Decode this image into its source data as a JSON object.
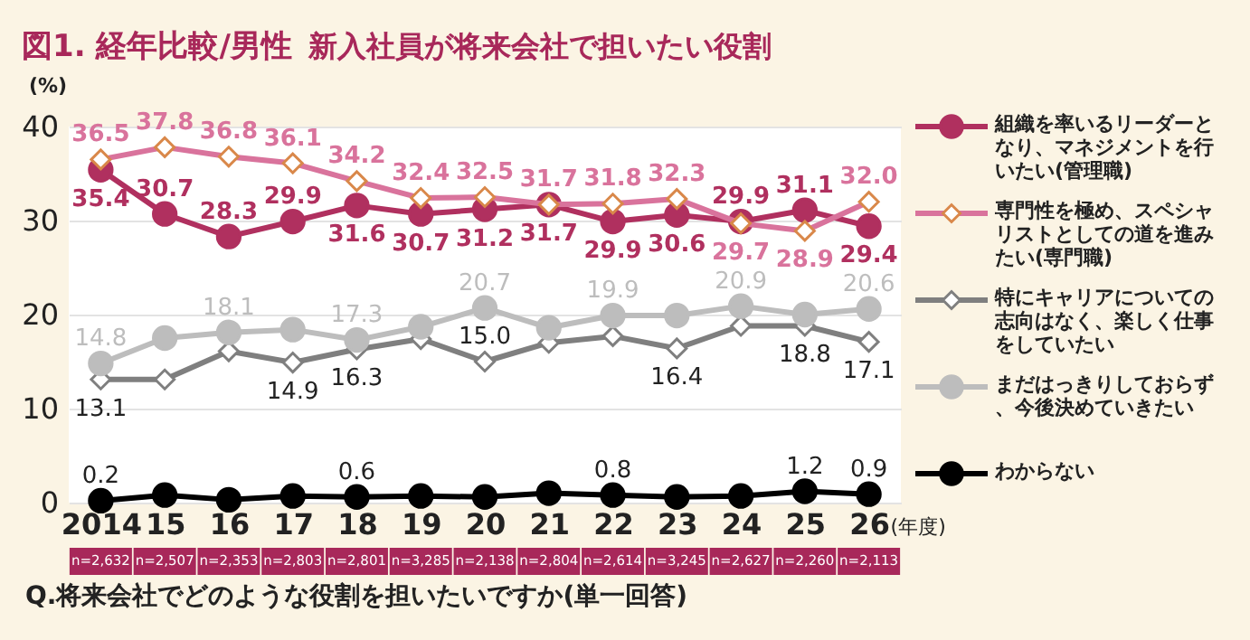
{
  "chart_data": {
    "type": "line",
    "title": "図1. 経年比較/男性",
    "subtitle": "新入社員が将来会社で担いたい役割",
    "ylabel": "(%)",
    "xlabel": "(年度)",
    "categories": [
      "2014",
      "15",
      "16",
      "17",
      "18",
      "19",
      "20",
      "21",
      "22",
      "23",
      "24",
      "25",
      "26"
    ],
    "ylim": [
      0,
      40
    ],
    "yticks": [
      0,
      10,
      20,
      30,
      40
    ],
    "grid": "y",
    "legend": "right",
    "series": [
      {
        "name": "組織を率いるリーダーとなり、マネジメントを行いたい(管理職)",
        "color": "#b0305f",
        "marker": "circle",
        "values": [
          35.4,
          30.7,
          28.3,
          29.9,
          31.6,
          30.7,
          31.2,
          31.7,
          29.9,
          30.6,
          29.9,
          31.1,
          29.4
        ],
        "value_labels": [
          "35.4",
          "30.7",
          "28.3",
          "29.9",
          "31.6",
          "30.7",
          "31.2",
          "31.7",
          "29.9",
          "30.6",
          "29.9",
          "31.1",
          "29.4"
        ]
      },
      {
        "name": "専門性を極め、スペシャリストとしての道を進みたい(専門職)",
        "color": "#d9739c",
        "marker": "diamond",
        "values": [
          36.5,
          37.8,
          36.8,
          36.1,
          34.2,
          32.4,
          32.5,
          31.7,
          31.8,
          32.3,
          29.7,
          28.9,
          32.0
        ],
        "value_labels": [
          "36.5",
          "37.8",
          "36.8",
          "36.1",
          "34.2",
          "32.4",
          "32.5",
          "31.7",
          "31.8",
          "32.3",
          "29.7",
          "28.9",
          "32.0"
        ]
      },
      {
        "name": "特にキャリアについての志向はなく、楽しく仕事をしていたい",
        "color": "#7f7f7f",
        "marker": "diamond",
        "values": [
          13.1,
          13.1,
          16.1,
          14.9,
          16.3,
          17.4,
          15.0,
          17.0,
          17.7,
          16.4,
          18.8,
          18.8,
          17.1
        ],
        "value_labels": [
          "13.1",
          null,
          null,
          "14.9",
          "16.3",
          null,
          "15.0",
          null,
          null,
          "16.4",
          null,
          "18.8",
          "17.1"
        ]
      },
      {
        "name": "まだはっきりしておらず、今後決めていきたい",
        "color": "#bdbdbd",
        "marker": "circle",
        "values": [
          14.8,
          17.5,
          18.1,
          18.4,
          17.3,
          18.7,
          20.7,
          18.6,
          19.9,
          19.9,
          20.9,
          20.0,
          20.6
        ],
        "value_labels": [
          "14.8",
          null,
          "18.1",
          null,
          "17.3",
          null,
          "20.7",
          null,
          "19.9",
          null,
          "20.9",
          null,
          "20.6"
        ]
      },
      {
        "name": "わからない",
        "color": "#000000",
        "marker": "circle",
        "values": [
          0.2,
          0.8,
          0.3,
          0.7,
          0.6,
          0.7,
          0.6,
          1.0,
          0.8,
          0.6,
          0.7,
          1.2,
          0.9
        ],
        "value_labels": [
          "0.2",
          null,
          null,
          null,
          "0.6",
          null,
          null,
          null,
          "0.8",
          null,
          null,
          "1.2",
          "0.9"
        ]
      }
    ],
    "annotations": [
      "n=2,632",
      "n=2,507",
      "n=2,353",
      "n=2,803",
      "n=2,801",
      "n=3,285",
      "n=2,138",
      "n=2,804",
      "n=2,614",
      "n=3,245",
      "n=2,627",
      "n=2,260",
      "n=2,113",
      "Q.将来会社でどのような役割を担いたいですか(単一回答)"
    ]
  }
}
